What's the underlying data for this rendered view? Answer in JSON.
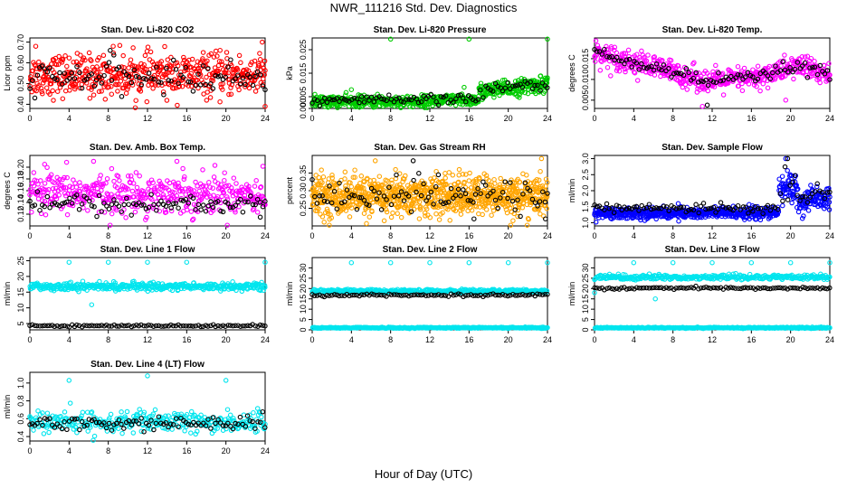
{
  "title": "NWR_111216  Std. Dev. Diagnostics",
  "xlabel": "Hour of Day (UTC)",
  "colors": {
    "black": "#000000",
    "red": "#ff0000",
    "green": "#00cc00",
    "magenta": "#ff00ff",
    "orange": "#ffa500",
    "blue": "#0000ff",
    "cyan": "#00e5ee"
  },
  "chart_data": [
    {
      "type": "scatter",
      "title": "Stan. Dev. Li-820 CO2",
      "ylabel": "Licor ppm",
      "xlim": [
        0,
        24
      ],
      "ylim": [
        0.38,
        0.72
      ],
      "xticks": [
        "0",
        "4",
        "8",
        "12",
        "16",
        "20",
        "24"
      ],
      "yticks": [
        "0.40",
        "0.50",
        "0.60",
        "0.70"
      ],
      "series": [
        {
          "name": "all",
          "color": "red",
          "n": 520,
          "pattern": "flat",
          "mean": 0.54,
          "sd": 0.05,
          "outliers": [
            [
              0.6,
              0.68
            ],
            [
              8.5,
              0.68
            ],
            [
              23.7,
              0.7
            ],
            [
              24,
              0.39
            ]
          ]
        },
        {
          "name": "hourly",
          "color": "black",
          "n": 96,
          "pattern": "flat",
          "mean": 0.53,
          "sd": 0.035,
          "outliers": [
            [
              8.2,
              0.66
            ]
          ]
        }
      ]
    },
    {
      "type": "scatter",
      "title": "Stan. Dev. Li-820 Pressure",
      "ylabel": "kPa",
      "xlim": [
        0,
        24
      ],
      "ylim": [
        0.0,
        0.03
      ],
      "xticks": [
        "0",
        "4",
        "8",
        "12",
        "16",
        "20",
        "24"
      ],
      "yticks": [
        "0.000",
        "0.005",
        "0.015",
        "0.025"
      ],
      "series": [
        {
          "name": "all",
          "color": "green",
          "n": 700,
          "pattern": "pressure",
          "mean": 0.003,
          "sd": 0.0012,
          "outliers": [
            [
              8,
              0.0295
            ],
            [
              16,
              0.0295
            ],
            [
              24,
              0.0295
            ],
            [
              4,
              0.008
            ],
            [
              15.5,
              0.009
            ]
          ]
        },
        {
          "name": "hourly",
          "color": "black",
          "n": 96,
          "pattern": "pressure",
          "mean": 0.0035,
          "sd": 0.001,
          "outliers": []
        }
      ]
    },
    {
      "type": "scatter",
      "title": "Stan. Dev. Li-820 Temp.",
      "ylabel": "degrees C",
      "xlim": [
        0,
        24
      ],
      "ylim": [
        0.003,
        0.02
      ],
      "xticks": [
        "0",
        "4",
        "8",
        "12",
        "16",
        "20",
        "24"
      ],
      "yticks": [
        "0.005",
        "0.010",
        "0.015"
      ],
      "series": [
        {
          "name": "all",
          "color": "magenta",
          "n": 520,
          "pattern": "temp",
          "mean": 0.0105,
          "sd": 0.0014,
          "outliers": [
            [
              11,
              0.0035
            ],
            [
              19.5,
              0.005
            ]
          ]
        },
        {
          "name": "hourly",
          "color": "black",
          "n": 96,
          "pattern": "temp",
          "mean": 0.0105,
          "sd": 0.0008,
          "outliers": [
            [
              11.5,
              0.0038
            ]
          ]
        }
      ]
    },
    {
      "type": "scatter",
      "title": "Stan. Dev. Amb. Box Temp.",
      "ylabel": "degrees C",
      "xlim": [
        0,
        24
      ],
      "ylim": [
        0.1,
        0.22
      ],
      "xticks": [
        "0",
        "4",
        "8",
        "12",
        "16",
        "20",
        "24"
      ],
      "yticks": [
        "0.12",
        "0.14",
        "0.16",
        "0.18",
        "0.20"
      ],
      "series": [
        {
          "name": "all",
          "color": "magenta",
          "n": 450,
          "pattern": "flat",
          "mean": 0.155,
          "sd": 0.017,
          "outliers": [
            [
              1.5,
              0.205
            ],
            [
              6.5,
              0.21
            ],
            [
              15,
              0.21
            ]
          ]
        },
        {
          "name": "hourly",
          "color": "black",
          "n": 96,
          "pattern": "flat",
          "mean": 0.137,
          "sd": 0.009,
          "outliers": [
            [
              23.5,
              0.115
            ]
          ]
        }
      ]
    },
    {
      "type": "scatter",
      "title": "Stan. Dev. Gas Stream RH",
      "ylabel": "percent",
      "xlim": [
        0,
        24
      ],
      "ylim": [
        0.2,
        0.4
      ],
      "xticks": [
        "0",
        "4",
        "8",
        "12",
        "16",
        "20",
        "24"
      ],
      "yticks": [
        "0.25",
        "0.30",
        "0.35"
      ],
      "series": [
        {
          "name": "all",
          "color": "orange",
          "n": 900,
          "pattern": "flat",
          "mean": 0.285,
          "sd": 0.028,
          "outliers": [
            [
              8.5,
              0.36
            ],
            [
              15,
              0.36
            ]
          ]
        },
        {
          "name": "hourly",
          "color": "black",
          "n": 96,
          "pattern": "flat",
          "mean": 0.285,
          "sd": 0.025,
          "outliers": [
            [
              10.3,
              0.385
            ],
            [
              16.5,
              0.22
            ],
            [
              23.8,
              0.22
            ]
          ]
        }
      ]
    },
    {
      "type": "scatter",
      "title": "Stan. Dev. Sample Flow",
      "ylabel": "ml/min",
      "xlim": [
        0,
        24
      ],
      "ylim": [
        0.9,
        3.1
      ],
      "xticks": [
        "0",
        "4",
        "8",
        "12",
        "16",
        "20",
        "24"
      ],
      "yticks": [
        "1.0",
        "1.5",
        "2.0",
        "2.5",
        "3.0"
      ],
      "series": [
        {
          "name": "all",
          "color": "blue",
          "n": 700,
          "pattern": "flow",
          "mean": 1.3,
          "sd": 0.09,
          "outliers": [
            [
              19.5,
              3.0
            ]
          ]
        },
        {
          "name": "hourly",
          "color": "black",
          "n": 96,
          "pattern": "flow",
          "mean": 1.45,
          "sd": 0.07,
          "outliers": [
            [
              19.7,
              3.0
            ]
          ]
        }
      ]
    },
    {
      "type": "scatter",
      "title": "Stan. Dev. Line 1 Flow",
      "ylabel": "ml/min",
      "xlim": [
        0,
        24
      ],
      "ylim": [
        3,
        26
      ],
      "xticks": [
        "0",
        "4",
        "8",
        "12",
        "16",
        "20",
        "24"
      ],
      "yticks": [
        "5",
        "10",
        "15",
        "20",
        "25"
      ],
      "series": [
        {
          "name": "all",
          "color": "cyan",
          "n": 420,
          "pattern": "flat",
          "mean": 16.8,
          "sd": 0.6,
          "outliers": [
            [
              4,
              24.5
            ],
            [
              8,
              24.5
            ],
            [
              12,
              24.5
            ],
            [
              16,
              24.5
            ],
            [
              24,
              24.5
            ],
            [
              6.3,
              11
            ]
          ]
        },
        {
          "name": "hourly",
          "color": "black",
          "n": 96,
          "pattern": "flat",
          "mean": 4.3,
          "sd": 0.15,
          "outliers": []
        }
      ]
    },
    {
      "type": "scatter",
      "title": "Stan. Dev. Line 2 Flow",
      "ylabel": "ml/min",
      "xlim": [
        0,
        24
      ],
      "ylim": [
        0,
        35
      ],
      "xticks": [
        "0",
        "4",
        "8",
        "12",
        "16",
        "20",
        "24"
      ],
      "yticks": [
        "0",
        "5",
        "10",
        "15",
        "20",
        "25",
        "30"
      ],
      "series": [
        {
          "name": "all",
          "color": "cyan",
          "n": 700,
          "pattern": "twoband",
          "mean": 18.8,
          "sd": 0.4,
          "low": 1.0,
          "outliers": [
            [
              4,
              32.5
            ],
            [
              8,
              32.5
            ],
            [
              12,
              32.5
            ],
            [
              16,
              32.5
            ],
            [
              20,
              32.5
            ],
            [
              24,
              32.5
            ]
          ]
        },
        {
          "name": "hourly",
          "color": "black",
          "n": 96,
          "pattern": "flat",
          "mean": 16.8,
          "sd": 0.3,
          "outliers": []
        }
      ]
    },
    {
      "type": "scatter",
      "title": "Stan. Dev. Line 3 Flow",
      "ylabel": "ml/min",
      "xlim": [
        0,
        24
      ],
      "ylim": [
        0,
        35
      ],
      "xticks": [
        "0",
        "4",
        "8",
        "12",
        "16",
        "20",
        "24"
      ],
      "yticks": [
        "0",
        "5",
        "10",
        "15",
        "20",
        "25",
        "30"
      ],
      "series": [
        {
          "name": "all",
          "color": "cyan",
          "n": 700,
          "pattern": "twoband",
          "mean": 25.5,
          "sd": 0.6,
          "low": 1.0,
          "outliers": [
            [
              4,
              32.5
            ],
            [
              8,
              32.5
            ],
            [
              12,
              32.5
            ],
            [
              16,
              32.5
            ],
            [
              20,
              32.5
            ],
            [
              24,
              32.5
            ],
            [
              6.2,
              15
            ],
            [
              0,
              18
            ]
          ]
        },
        {
          "name": "hourly",
          "color": "black",
          "n": 96,
          "pattern": "flat",
          "mean": 20.2,
          "sd": 0.3,
          "outliers": []
        }
      ]
    },
    {
      "type": "scatter",
      "title": "Stan. Dev. Line 4 (LT) Flow",
      "ylabel": "ml/min",
      "xlim": [
        0,
        24
      ],
      "ylim": [
        0.35,
        1.12
      ],
      "xticks": [
        "0",
        "4",
        "8",
        "12",
        "16",
        "20",
        "24"
      ],
      "yticks": [
        "0.4",
        "0.6",
        "0.8",
        "1.0"
      ],
      "series": [
        {
          "name": "all",
          "color": "cyan",
          "n": 320,
          "pattern": "flat",
          "mean": 0.56,
          "sd": 0.06,
          "outliers": [
            [
              4,
              1.03
            ],
            [
              12,
              1.08
            ],
            [
              20,
              1.03
            ]
          ]
        },
        {
          "name": "hourly",
          "color": "black",
          "n": 96,
          "pattern": "flat",
          "mean": 0.55,
          "sd": 0.04,
          "outliers": []
        }
      ]
    }
  ]
}
